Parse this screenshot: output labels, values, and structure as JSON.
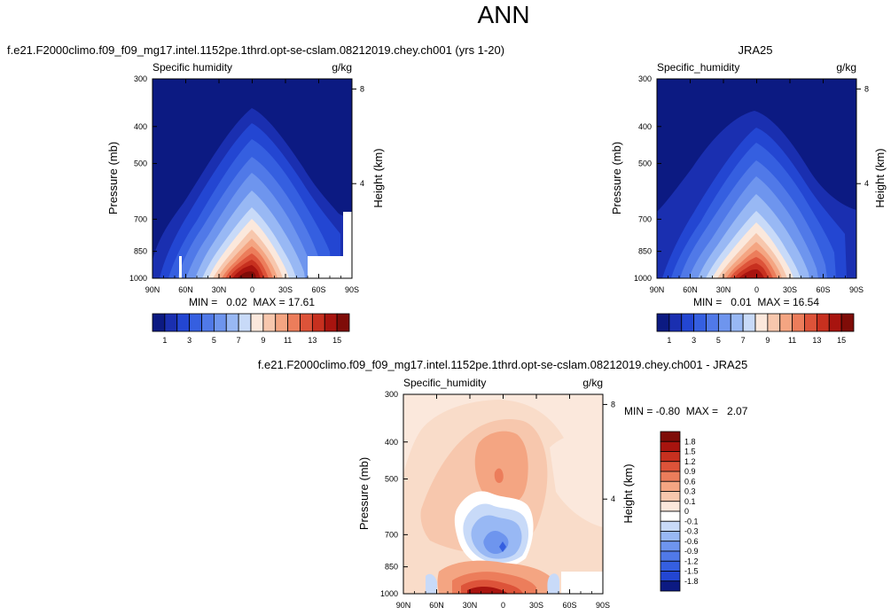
{
  "page_title": "ANN",
  "chart_data": [
    {
      "type": "heatmap",
      "title": "f.e21.F2000climo.f09_f09_mg17.intel.1152pe.1thrd.opt-se-cslam.08212019.chey.ch001 (yrs 1-20)",
      "subtitle_left": "Specific humidity",
      "subtitle_right": "g/kg",
      "ylabel": "Pressure (mb)",
      "ylabel_right": "Height (km)",
      "x_ticks": [
        "90N",
        "60N",
        "30N",
        "0",
        "30S",
        "60S",
        "90S"
      ],
      "y_ticks": [
        "300",
        "400",
        "500",
        "700",
        "850",
        "1000"
      ],
      "y_right_ticks": [
        "8",
        "4"
      ],
      "min_max": "MIN =   0.02  MAX = 17.61",
      "min": 0.02,
      "max": 17.61,
      "colorbar_labels": [
        "1",
        "3",
        "5",
        "7",
        "9",
        "11",
        "13",
        "15"
      ]
    },
    {
      "type": "heatmap",
      "title": "JRA25",
      "subtitle_left": "Specific_humidity",
      "subtitle_right": "g/kg",
      "ylabel": "Pressure (mb)",
      "ylabel_right": "Height (km)",
      "x_ticks": [
        "90N",
        "60N",
        "30N",
        "0",
        "30S",
        "60S",
        "90S"
      ],
      "y_ticks": [
        "300",
        "400",
        "500",
        "700",
        "850",
        "1000"
      ],
      "y_right_ticks": [
        "8",
        "4"
      ],
      "min_max": "MIN =   0.01  MAX = 16.54",
      "min": 0.01,
      "max": 16.54,
      "colorbar_labels": [
        "1",
        "3",
        "5",
        "7",
        "9",
        "11",
        "13",
        "15"
      ]
    },
    {
      "type": "heatmap",
      "title": "f.e21.F2000climo.f09_f09_mg17.intel.1152pe.1thrd.opt-se-cslam.08212019.chey.ch001 - JRA25",
      "subtitle_left": "Specific_humidity",
      "subtitle_right": "g/kg",
      "ylabel": "Pressure (mb)",
      "ylabel_right": "Height (km)",
      "x_ticks": [
        "90N",
        "60N",
        "30N",
        "0",
        "30S",
        "60S",
        "90S"
      ],
      "y_ticks": [
        "300",
        "400",
        "500",
        "700",
        "850",
        "1000"
      ],
      "y_right_ticks": [
        "8",
        "4"
      ],
      "min_max": "MIN = -0.80  MAX =   2.07",
      "min": -0.8,
      "max": 2.07,
      "colorbar_labels": [
        "1.8",
        "1.5",
        "1.2",
        "0.9",
        "0.6",
        "0.3",
        "0.1",
        "0",
        "-0.1",
        "-0.3",
        "-0.6",
        "-0.9",
        "-1.2",
        "-1.5",
        "-1.8"
      ]
    }
  ],
  "colors": {
    "abs_scale": [
      "#0c1a82",
      "#1a2fb0",
      "#2346d2",
      "#355fe0",
      "#5079e8",
      "#6e95ee",
      "#98b8f4",
      "#c8daf8",
      "#fbe8dc",
      "#f7c7ad",
      "#f4a582",
      "#ec7d5b",
      "#dd5339",
      "#c7301f",
      "#a8140f",
      "#7f0c08"
    ],
    "diff_scale": [
      "#7f0c08",
      "#a8140f",
      "#c7301f",
      "#dd5339",
      "#ec7d5b",
      "#f4a582",
      "#f7c7ad",
      "#fbe8dc",
      "#ffffff",
      "#c8daf8",
      "#98b8f4",
      "#6e95ee",
      "#5079e8",
      "#355fe0",
      "#2346d2",
      "#0c1a82"
    ]
  }
}
